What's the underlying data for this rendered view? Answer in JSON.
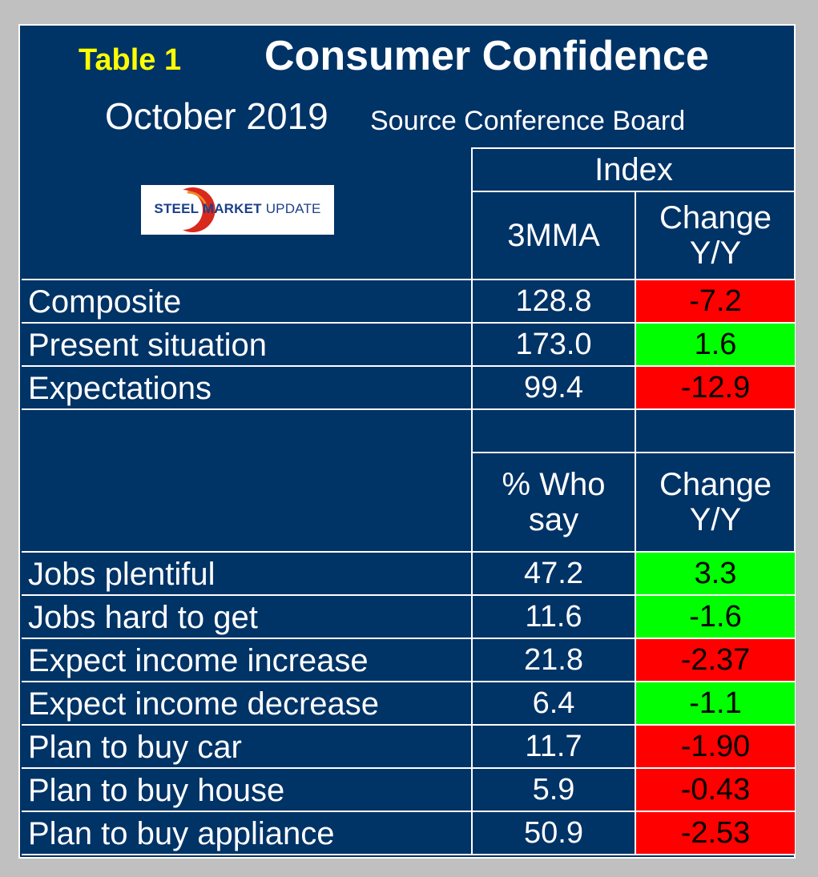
{
  "header": {
    "table_label": "Table 1",
    "title": "Consumer Confidence",
    "month": "October 2019",
    "source": "Source Conference Board"
  },
  "logo": {
    "word1": "STEEL",
    "word2": "MARKET",
    "word3": "UPDATE"
  },
  "colors": {
    "background": "#003366",
    "frame": "#c0c0c0",
    "label_yellow": "#ffff00",
    "positive": "#00ff00",
    "negative": "#ff0000"
  },
  "chart_data": {
    "type": "table",
    "title": "Consumer Confidence",
    "index_header": "Index",
    "sections": [
      {
        "col_value": "3MMA",
        "col_change": "Change Y/Y",
        "rows": [
          {
            "label": "Composite",
            "value": "128.8",
            "change": "-7.2",
            "color": "#ff0000"
          },
          {
            "label": "Present situation",
            "value": "173.0",
            "change": "1.6",
            "color": "#00ff00"
          },
          {
            "label": "Expectations",
            "value": "99.4",
            "change": "-12.9",
            "color": "#ff0000"
          }
        ]
      },
      {
        "col_value": "% Who say",
        "col_change": "Change Y/Y",
        "rows": [
          {
            "label": "Jobs plentiful",
            "value": "47.2",
            "change": "3.3",
            "color": "#00ff00"
          },
          {
            "label": "Jobs hard to get",
            "value": "11.6",
            "change": "-1.6",
            "color": "#00ff00"
          },
          {
            "label": "Expect income increase",
            "value": "21.8",
            "change": "-2.37",
            "color": "#ff0000"
          },
          {
            "label": "Expect income decrease",
            "value": "6.4",
            "change": "-1.1",
            "color": "#00ff00"
          },
          {
            "label": "Plan to buy car",
            "value": "11.7",
            "change": "-1.90",
            "color": "#ff0000"
          },
          {
            "label": "Plan to buy house",
            "value": "5.9",
            "change": "-0.43",
            "color": "#ff0000"
          },
          {
            "label": "Plan to buy appliance",
            "value": "50.9",
            "change": "-2.53",
            "color": "#ff0000"
          }
        ]
      }
    ]
  }
}
